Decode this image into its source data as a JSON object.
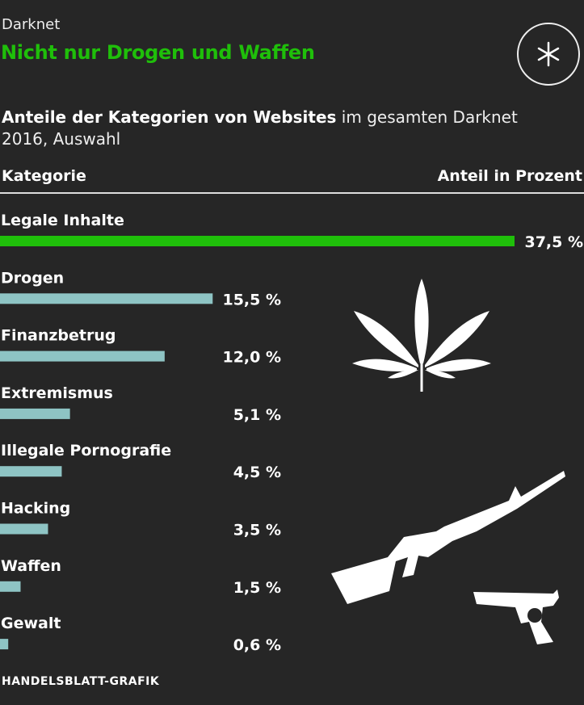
{
  "header": {
    "kicker": "Darknet",
    "title": "Nicht nur Drogen und Waffen",
    "subtitle_bold": "Anteile der Kategorien von Websites",
    "subtitle_rest": " im gesamten Darknet 2016, Auswahl",
    "logo_icon": "asterisk-circle-icon"
  },
  "columns": {
    "category": "Kategorie",
    "value": "Anteil in Prozent"
  },
  "chart_data": {
    "type": "bar",
    "orientation": "horizontal",
    "categories": [
      "Legale Inhalte",
      "Drogen",
      "Finanzbetrug",
      "Extremismus",
      "Illegale Pornografie",
      "Hacking",
      "Waffen",
      "Gewalt"
    ],
    "values": [
      37.5,
      15.5,
      12.0,
      5.1,
      4.5,
      3.5,
      1.5,
      0.6
    ],
    "value_labels": [
      "37,5 %",
      "15,5 %",
      "12,0 %",
      "5,1 %",
      "4,5 %",
      "3,5 %",
      "1,5 %",
      "0,6 %"
    ],
    "xlabel": "Anteil in Prozent",
    "ylabel": "Kategorie",
    "xlim": [
      0,
      37.5
    ],
    "grid": false,
    "colors": {
      "highlight": "#1fbf0a",
      "default": "#8ec4c4"
    }
  },
  "illustrations": [
    "cannabis-leaf-icon",
    "rifle-icon",
    "revolver-icon"
  ],
  "source": "HANDELSBLATT-GRAFIK",
  "colors": {
    "background": "#262626",
    "accent": "#1fbf0a",
    "bar": "#8ec4c4"
  }
}
